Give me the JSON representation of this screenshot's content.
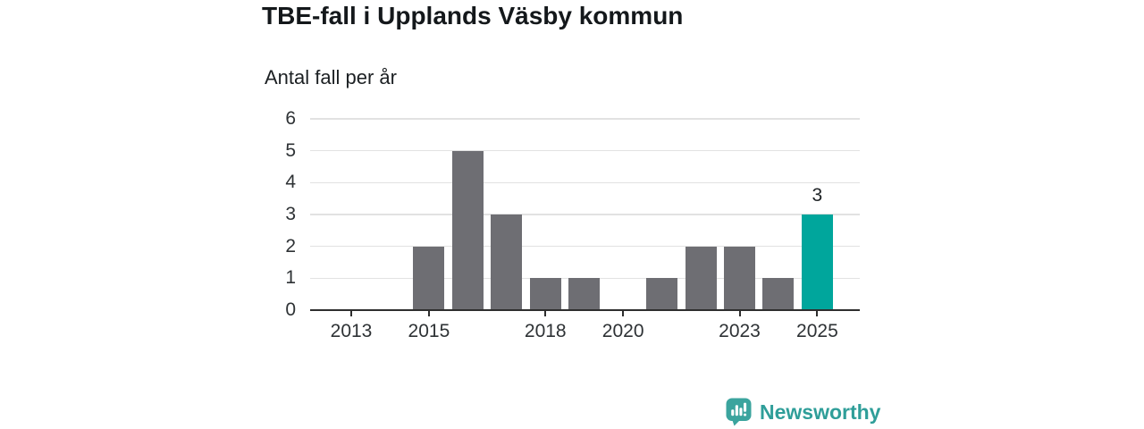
{
  "chart_data": {
    "type": "bar",
    "title": "TBE-fall i Upplands Väsby kommun",
    "subtitle": "Antal fall per år",
    "categories": [
      2012,
      2013,
      2014,
      2015,
      2016,
      2017,
      2018,
      2019,
      2020,
      2021,
      2022,
      2023,
      2024,
      2025
    ],
    "values": [
      0,
      0,
      0,
      2,
      5,
      3,
      1,
      1,
      0,
      1,
      2,
      2,
      1,
      3
    ],
    "xlabel": "",
    "ylabel": "Antal fall per år",
    "ylim": [
      0,
      6
    ],
    "yticks": [
      0,
      1,
      2,
      3,
      4,
      5,
      6
    ],
    "xticks": [
      2013,
      2015,
      2018,
      2020,
      2023,
      2025
    ],
    "grid": "horizontal",
    "legend": "none",
    "highlight": {
      "year": 2025,
      "value": 3,
      "label": "3"
    },
    "colors": {
      "bar": "#6e6e73",
      "highlight": "#00a69c",
      "grid": "#e2e2e2",
      "axis": "#2e2e2e",
      "text": "#1d2124"
    }
  },
  "footer": {
    "brand": "Newsworthy",
    "brand_color": "#2f9e99",
    "logo_icon": "newsworthy-speech-bubble-bar-chart-icon",
    "logo_icon_color": "#3ba49e"
  }
}
